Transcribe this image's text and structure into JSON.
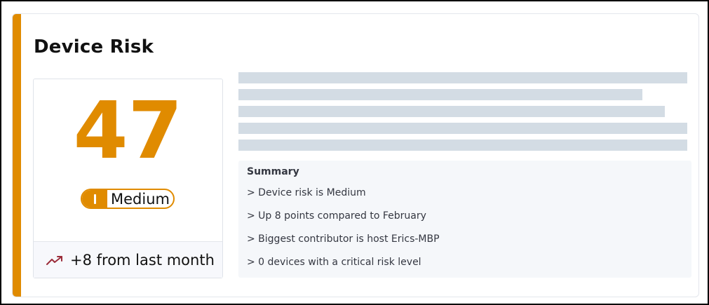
{
  "card": {
    "title": "Device Risk",
    "accent_color": "#e08b00"
  },
  "score": {
    "value": "47",
    "level_label": "Medium",
    "trend_icon": "trending-up-icon",
    "trend_text": "+8 from last month"
  },
  "summary": {
    "title": "Summary",
    "items": [
      "> Device risk is Medium",
      "> Up 8 points compared to February",
      "> Biggest contributor is host Erics-MBP",
      "> 0 devices with a critical risk level"
    ]
  },
  "loading_placeholder": {
    "line_count": 5
  }
}
